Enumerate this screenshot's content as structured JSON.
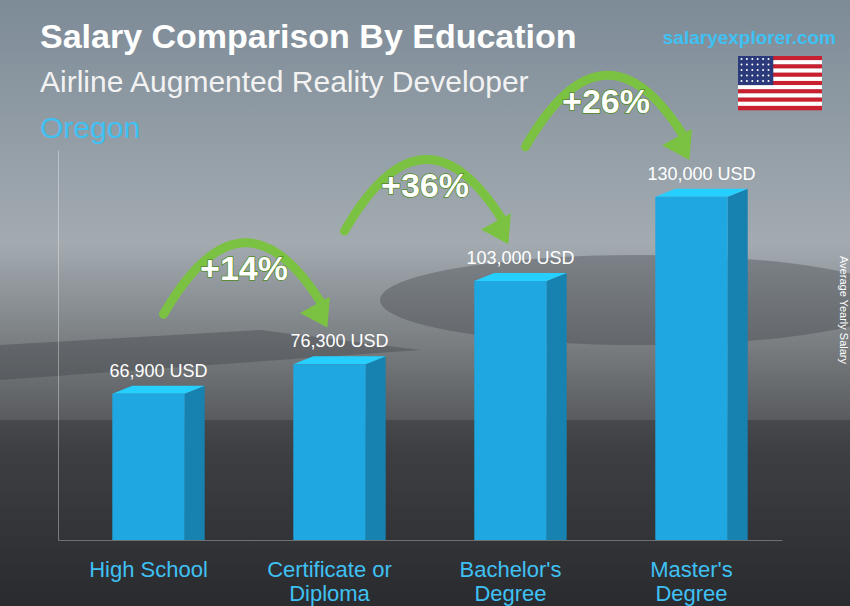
{
  "chart_data": {
    "type": "bar",
    "title": "Salary Comparison By Education",
    "subtitle": "Airline Augmented Reality Developer",
    "location": "Oregon",
    "source": "salaryexplorer.com",
    "y_label": "Average Yearly Salary",
    "categories": [
      "High School",
      "Certificate or Diploma",
      "Bachelor's Degree",
      "Master's Degree"
    ],
    "values": [
      66900,
      76300,
      103000,
      130000
    ],
    "value_labels": [
      "66,900 USD",
      "76,300 USD",
      "103,000 USD",
      "130,000 USD"
    ],
    "data_labels": true,
    "annotations": [
      "+14%",
      "+36%",
      "+26%"
    ],
    "color": "#1ea7e1",
    "ylim": [
      20000,
      145000
    ],
    "tick_labels": "x",
    "grid": false
  }
}
